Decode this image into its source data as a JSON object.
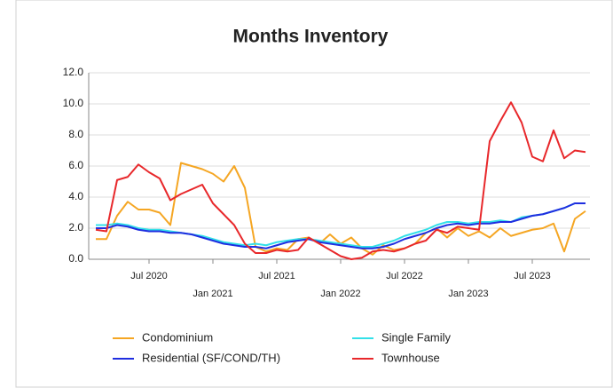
{
  "chart_data": {
    "type": "line",
    "title": "Months Inventory",
    "x": [
      "2020-02",
      "2020-03",
      "2020-04",
      "2020-05",
      "2020-06",
      "2020-07",
      "2020-08",
      "2020-09",
      "2020-10",
      "2020-11",
      "2020-12",
      "2021-01",
      "2021-02",
      "2021-03",
      "2021-04",
      "2021-05",
      "2021-06",
      "2021-07",
      "2021-08",
      "2021-09",
      "2021-10",
      "2021-11",
      "2021-12",
      "2022-01",
      "2022-02",
      "2022-03",
      "2022-04",
      "2022-05",
      "2022-06",
      "2022-07",
      "2022-08",
      "2022-09",
      "2022-10",
      "2022-11",
      "2022-12",
      "2023-01",
      "2023-02",
      "2023-03",
      "2023-04",
      "2023-05",
      "2023-06",
      "2023-07",
      "2023-08",
      "2023-09",
      "2023-10",
      "2023-11",
      "2023-12"
    ],
    "xticks": [
      {
        "value": "2020-07",
        "label": "Jul 2020"
      },
      {
        "value": "2021-01",
        "label": "Jan 2021"
      },
      {
        "value": "2021-07",
        "label": "Jul 2021"
      },
      {
        "value": "2022-01",
        "label": "Jan 2022"
      },
      {
        "value": "2022-07",
        "label": "Jul 2022"
      },
      {
        "value": "2023-01",
        "label": "Jan 2023"
      },
      {
        "value": "2023-07",
        "label": "Jul 2023"
      }
    ],
    "ylim": [
      0,
      12
    ],
    "yticks": [
      {
        "value": 0,
        "label": "0.0"
      },
      {
        "value": 2,
        "label": "2.0"
      },
      {
        "value": 4,
        "label": "4.0"
      },
      {
        "value": 6,
        "label": "6.0"
      },
      {
        "value": 8,
        "label": "8.0"
      },
      {
        "value": 10,
        "label": "10.0"
      },
      {
        "value": 12,
        "label": "12.0"
      }
    ],
    "grid": true,
    "series": [
      {
        "name": "Condominium",
        "color": "#f5a623",
        "values": [
          1.3,
          1.3,
          2.8,
          3.7,
          3.2,
          3.2,
          3.0,
          2.2,
          6.2,
          6.0,
          5.8,
          5.5,
          5.0,
          6.0,
          4.6,
          0.8,
          0.5,
          0.7,
          0.6,
          1.3,
          1.4,
          1.0,
          1.6,
          1.0,
          1.4,
          0.7,
          0.3,
          0.9,
          0.6,
          0.7,
          1.0,
          1.7,
          2.0,
          1.4,
          2.0,
          1.5,
          1.8,
          1.4,
          2.0,
          1.5,
          1.7,
          1.9,
          2.0,
          2.3,
          0.5,
          2.6,
          3.1
        ]
      },
      {
        "name": "Single Family",
        "color": "#33e0e8",
        "values": [
          2.2,
          2.2,
          2.3,
          2.2,
          2.0,
          1.9,
          1.9,
          1.8,
          1.7,
          1.6,
          1.5,
          1.3,
          1.1,
          1.0,
          0.9,
          1.0,
          0.9,
          1.1,
          1.2,
          1.3,
          1.3,
          1.2,
          1.1,
          1.0,
          0.9,
          0.8,
          0.8,
          1.0,
          1.2,
          1.5,
          1.7,
          1.9,
          2.2,
          2.4,
          2.4,
          2.3,
          2.4,
          2.4,
          2.5,
          2.4,
          2.7,
          2.8,
          2.9,
          3.1,
          3.3,
          3.6,
          3.6
        ]
      },
      {
        "name": "Residential (SF/COND/TH)",
        "color": "#1f2ee0",
        "values": [
          2.0,
          2.0,
          2.2,
          2.1,
          1.9,
          1.8,
          1.8,
          1.7,
          1.7,
          1.6,
          1.4,
          1.2,
          1.0,
          0.9,
          0.8,
          0.8,
          0.7,
          0.9,
          1.1,
          1.2,
          1.3,
          1.1,
          1.0,
          0.9,
          0.8,
          0.7,
          0.7,
          0.8,
          1.0,
          1.3,
          1.5,
          1.7,
          2.0,
          2.2,
          2.3,
          2.2,
          2.3,
          2.3,
          2.4,
          2.4,
          2.6,
          2.8,
          2.9,
          3.1,
          3.3,
          3.6,
          3.6
        ]
      },
      {
        "name": "Townhouse",
        "color": "#e8282b",
        "values": [
          1.9,
          1.8,
          5.1,
          5.3,
          6.1,
          5.6,
          5.2,
          3.8,
          4.2,
          4.5,
          4.8,
          3.6,
          2.9,
          2.2,
          1.0,
          0.4,
          0.4,
          0.6,
          0.5,
          0.6,
          1.4,
          1.0,
          0.6,
          0.2,
          0.0,
          0.1,
          0.5,
          0.6,
          0.5,
          0.7,
          1.0,
          1.2,
          1.9,
          1.7,
          2.1,
          2.0,
          1.9,
          7.6,
          8.9,
          10.1,
          8.8,
          6.6,
          6.3,
          8.3,
          6.5,
          7.0,
          6.9
        ]
      }
    ]
  }
}
